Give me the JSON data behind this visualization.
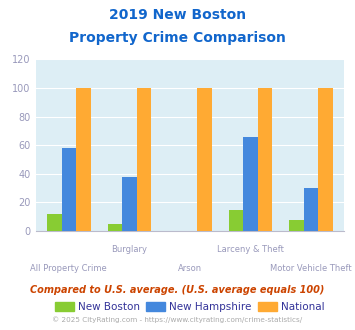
{
  "title_line1": "2019 New Boston",
  "title_line2": "Property Crime Comparison",
  "categories": [
    "All Property Crime",
    "Burglary",
    "Arson",
    "Larceny & Theft",
    "Motor Vehicle Theft"
  ],
  "new_boston": [
    12,
    5,
    0,
    15,
    8
  ],
  "new_hampshire": [
    58,
    38,
    0,
    66,
    30
  ],
  "national": [
    100,
    100,
    100,
    100,
    100
  ],
  "color_boston": "#88cc33",
  "color_nh": "#4488dd",
  "color_national": "#ffaa33",
  "ylim": [
    0,
    120
  ],
  "yticks": [
    0,
    20,
    40,
    60,
    80,
    100,
    120
  ],
  "bg_color": "#ddeef5",
  "title_color": "#1166cc",
  "legend_labels": [
    "New Boston",
    "New Hampshire",
    "National"
  ],
  "legend_label_color": "#333399",
  "footer_text": "Compared to U.S. average. (U.S. average equals 100)",
  "footer_color": "#cc4400",
  "copyright_text": "© 2025 CityRating.com - https://www.cityrating.com/crime-statistics/",
  "copyright_color": "#aaaaaa",
  "xtick_color": "#9999bb",
  "ytick_color": "#9999bb"
}
